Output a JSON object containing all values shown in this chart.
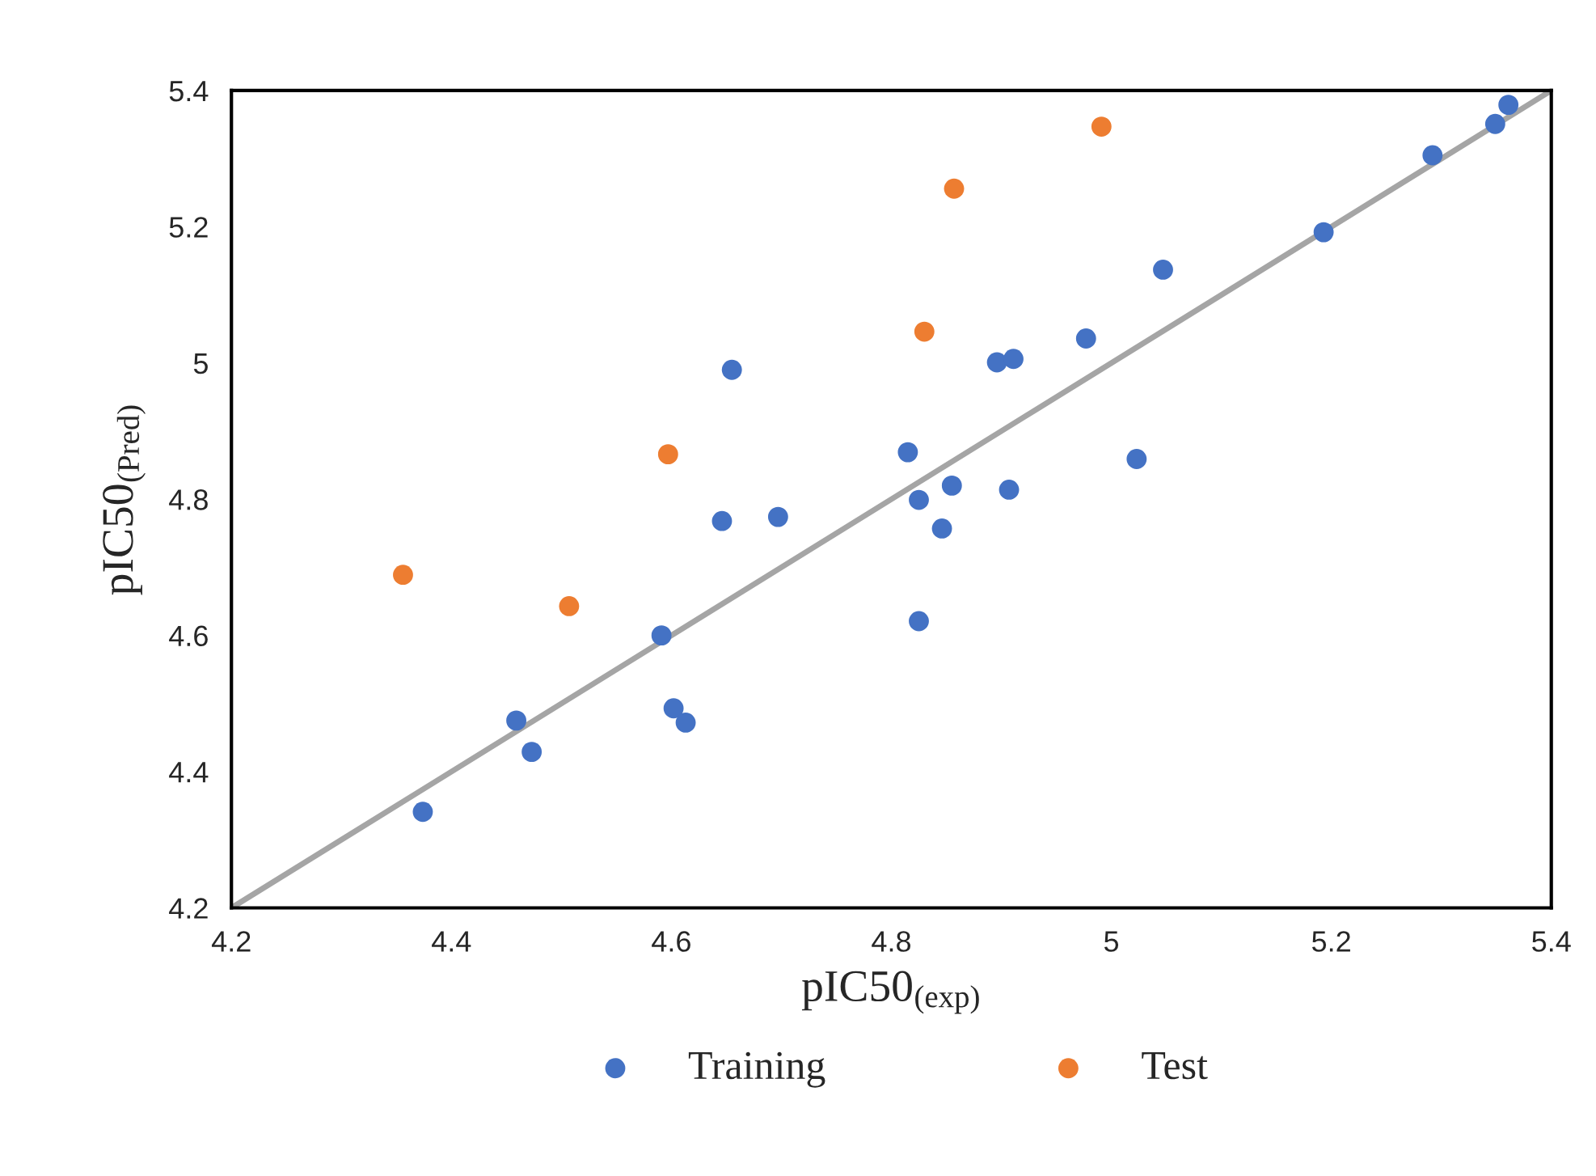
{
  "chart_data": {
    "type": "scatter",
    "xlabel": "pIC50$_{(exp)}$",
    "ylabel": "pIC50$_{(Pred)}$",
    "xlim": [
      4.2,
      5.4
    ],
    "ylim": [
      4.2,
      5.4
    ],
    "xticks": [
      {
        "value": 4.2,
        "label": "4.2"
      },
      {
        "value": 4.4,
        "label": "4.4"
      },
      {
        "value": 4.6,
        "label": "4.6"
      },
      {
        "value": 4.8,
        "label": "4.8"
      },
      {
        "value": 5,
        "label": "5"
      },
      {
        "value": 5.2,
        "label": "5.2"
      },
      {
        "value": 5.4,
        "label": "5.4"
      }
    ],
    "yticks": [
      {
        "value": 4.2,
        "label": "4.2"
      },
      {
        "value": 4.4,
        "label": "4.4"
      },
      {
        "value": 4.6,
        "label": "4.6"
      },
      {
        "value": 4.8,
        "label": "4.8"
      },
      {
        "value": 5,
        "label": "5"
      },
      {
        "value": 5.2,
        "label": "5.2"
      },
      {
        "value": 5.4,
        "label": "5.4"
      }
    ],
    "grid": false,
    "legend": "bottom",
    "series": [
      {
        "type": "line",
        "marker": "none",
        "color": "#a5a5a5",
        "x": [
          4.2,
          5.4
        ],
        "values": [
          4.2,
          5.4
        ]
      },
      {
        "name": "Training",
        "marker": "circle",
        "color": "#4472c4",
        "x": [
          4.655,
          4.646,
          4.697,
          4.591,
          4.602,
          4.613,
          4.459,
          4.473,
          4.374,
          5.361,
          5.349,
          5.292,
          5.193,
          5.047,
          4.977,
          4.896,
          4.911,
          4.815,
          4.855,
          4.825,
          4.907,
          5.023,
          4.846,
          4.825
        ],
        "values": [
          4.99,
          4.768,
          4.774,
          4.6,
          4.493,
          4.472,
          4.475,
          4.429,
          4.341,
          5.379,
          5.351,
          5.305,
          5.192,
          5.137,
          5.036,
          5.001,
          5.006,
          4.869,
          4.82,
          4.799,
          4.814,
          4.859,
          4.757,
          4.621
        ]
      },
      {
        "name": "Test",
        "marker": "circle",
        "color": "#ed7d31",
        "x": [
          4.356,
          4.507,
          4.597,
          4.991,
          4.857,
          4.83
        ],
        "values": [
          4.689,
          4.643,
          4.866,
          5.347,
          5.256,
          5.046
        ]
      }
    ]
  }
}
